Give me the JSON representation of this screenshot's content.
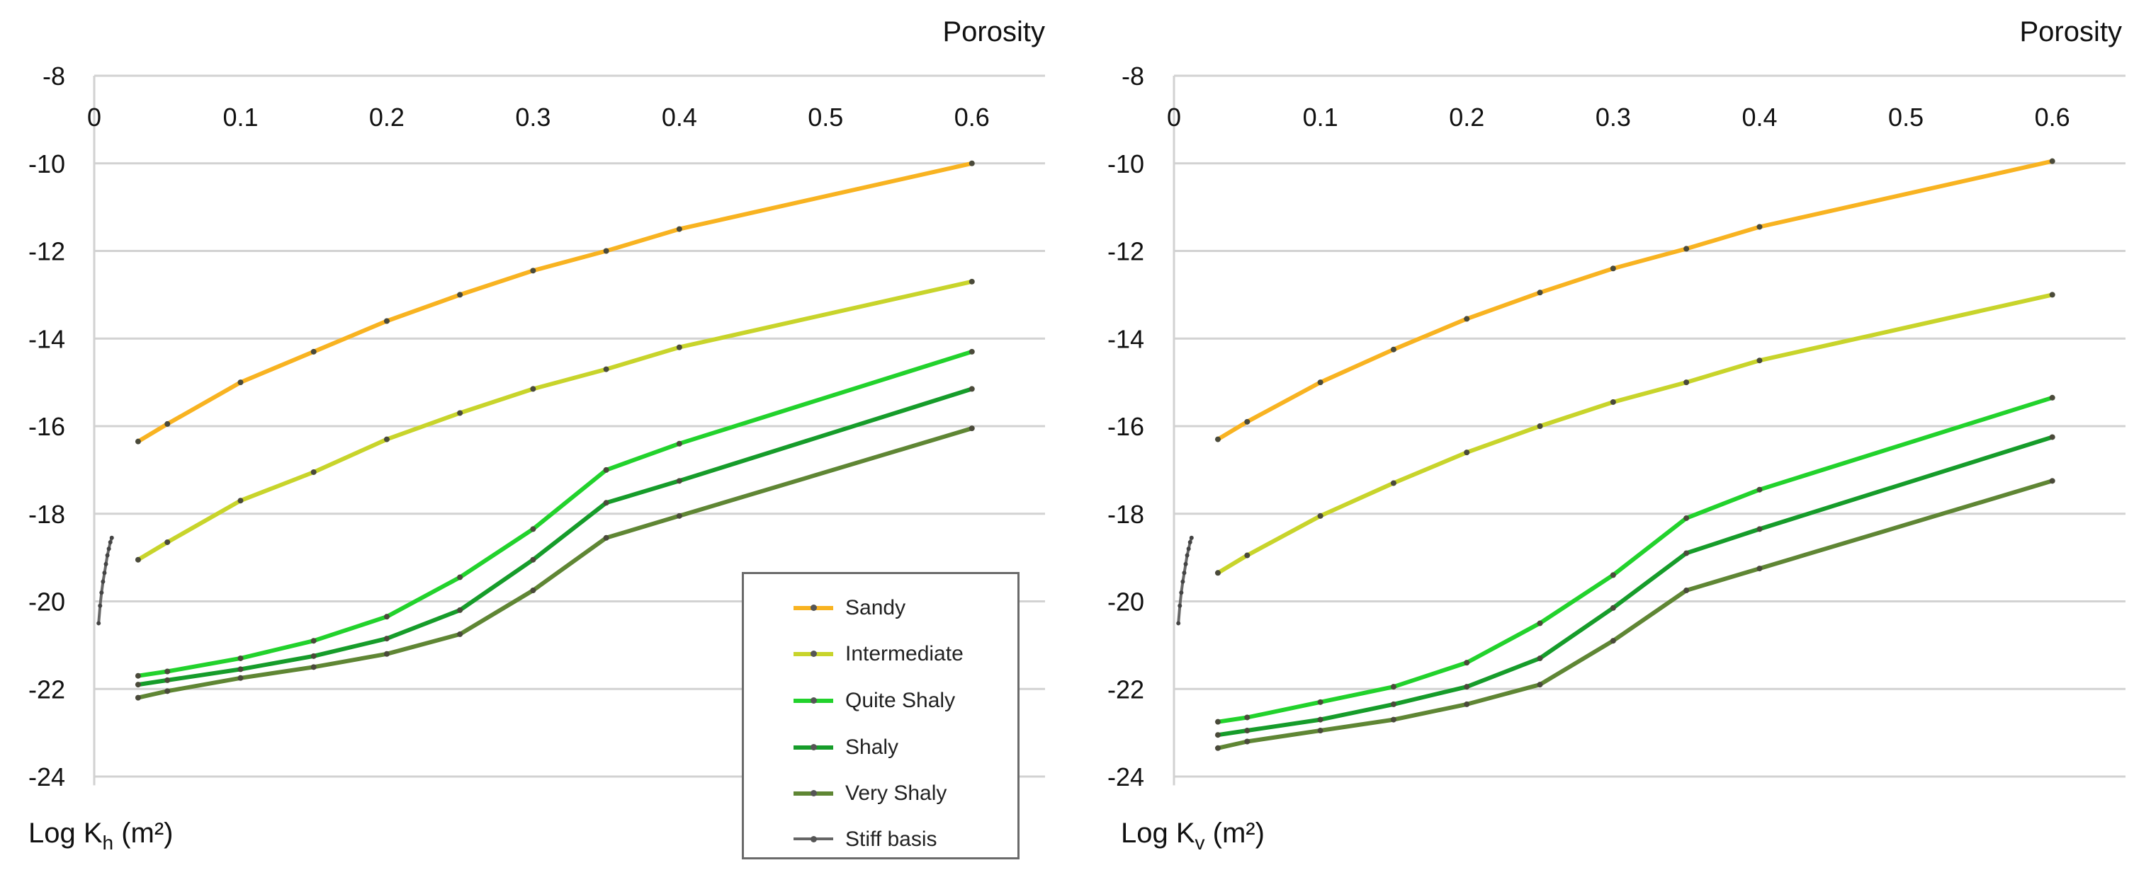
{
  "colors": {
    "sandy": "#f8b321",
    "intermediate": "#c8d42b",
    "quite_shaly": "#22d22c",
    "shaly": "#169c2a",
    "very_shaly": "#5f8634",
    "stiff_basis": "#666666",
    "grid": "#d2d2d2",
    "text": "#111111"
  },
  "chart_data": [
    {
      "type": "line",
      "x_axis_title": "Porosity",
      "y_axis_title": "Log K",
      "y_axis_subscript": "h",
      "y_axis_unit": " (m²)",
      "xlim": [
        0,
        0.65
      ],
      "ylim": [
        -24.2,
        -8
      ],
      "xticks": [
        0,
        0.1,
        0.2,
        0.3,
        0.4,
        0.5,
        0.6
      ],
      "xtick_labels": [
        "0",
        "0.1",
        "0.2",
        "0.3",
        "0.4",
        "0.5",
        "0.6"
      ],
      "yticks": [
        -8,
        -10,
        -12,
        -14,
        -16,
        -18,
        -20,
        -22,
        -24
      ],
      "ytick_labels": [
        "-8",
        "-10",
        "-12",
        "-14",
        "-16",
        "-18",
        "-20",
        "-22",
        "-24"
      ],
      "series": [
        {
          "name": "Sandy",
          "color_key": "sandy",
          "x": [
            0.03,
            0.05,
            0.1,
            0.15,
            0.2,
            0.25,
            0.3,
            0.35,
            0.4,
            0.6
          ],
          "y": [
            -16.35,
            -15.95,
            -15.0,
            -14.3,
            -13.6,
            -13.0,
            -12.45,
            -12.0,
            -11.5,
            -10.0
          ]
        },
        {
          "name": "Intermediate",
          "color_key": "intermediate",
          "x": [
            0.03,
            0.05,
            0.1,
            0.15,
            0.2,
            0.25,
            0.3,
            0.35,
            0.4,
            0.6
          ],
          "y": [
            -19.05,
            -18.65,
            -17.7,
            -17.05,
            -16.3,
            -15.7,
            -15.15,
            -14.7,
            -14.2,
            -12.7
          ]
        },
        {
          "name": "Quite Shaly",
          "color_key": "quite_shaly",
          "x": [
            0.03,
            0.05,
            0.1,
            0.15,
            0.2,
            0.25,
            0.3,
            0.35,
            0.4,
            0.6
          ],
          "y": [
            -21.7,
            -21.6,
            -21.3,
            -20.9,
            -20.35,
            -19.45,
            -18.35,
            -17.0,
            -16.4,
            -14.3
          ]
        },
        {
          "name": "Shaly",
          "color_key": "shaly",
          "x": [
            0.03,
            0.05,
            0.1,
            0.15,
            0.2,
            0.25,
            0.3,
            0.35,
            0.4,
            0.6
          ],
          "y": [
            -21.9,
            -21.8,
            -21.55,
            -21.25,
            -20.85,
            -20.2,
            -19.05,
            -17.75,
            -17.25,
            -15.15
          ]
        },
        {
          "name": "Very Shaly",
          "color_key": "very_shaly",
          "x": [
            0.03,
            0.05,
            0.1,
            0.15,
            0.2,
            0.25,
            0.3,
            0.35,
            0.4,
            0.6
          ],
          "y": [
            -22.2,
            -22.05,
            -21.75,
            -21.5,
            -21.2,
            -20.75,
            -19.75,
            -18.55,
            -18.05,
            -16.05
          ]
        },
        {
          "name": "Stiff basis",
          "color_key": "stiff_basis",
          "x": [
            0.003,
            0.004,
            0.005,
            0.006,
            0.007,
            0.008,
            0.009,
            0.01,
            0.011,
            0.012
          ],
          "y": [
            -20.5,
            -20.1,
            -19.8,
            -19.55,
            -19.35,
            -19.15,
            -18.95,
            -18.8,
            -18.65,
            -18.55
          ]
        }
      ]
    },
    {
      "type": "line",
      "x_axis_title": "Porosity",
      "y_axis_title": "Log K",
      "y_axis_subscript": "v",
      "y_axis_unit": " (m²)",
      "xlim": [
        0,
        0.65
      ],
      "ylim": [
        -24.2,
        -8
      ],
      "xticks": [
        0,
        0.1,
        0.2,
        0.3,
        0.4,
        0.5,
        0.6
      ],
      "xtick_labels": [
        "0",
        "0.1",
        "0.2",
        "0.3",
        "0.4",
        "0.5",
        "0.6"
      ],
      "yticks": [
        -8,
        -10,
        -12,
        -14,
        -16,
        -18,
        -20,
        -22,
        -24
      ],
      "ytick_labels": [
        "-8",
        "-10",
        "-12",
        "-14",
        "-16",
        "-18",
        "-20",
        "-22",
        "-24"
      ],
      "series": [
        {
          "name": "Sandy",
          "color_key": "sandy",
          "x": [
            0.03,
            0.05,
            0.1,
            0.15,
            0.2,
            0.25,
            0.3,
            0.35,
            0.4,
            0.6
          ],
          "y": [
            -16.3,
            -15.9,
            -15.0,
            -14.25,
            -13.55,
            -12.95,
            -12.4,
            -11.95,
            -11.45,
            -9.95
          ]
        },
        {
          "name": "Intermediate",
          "color_key": "intermediate",
          "x": [
            0.03,
            0.05,
            0.1,
            0.15,
            0.2,
            0.25,
            0.3,
            0.35,
            0.4,
            0.6
          ],
          "y": [
            -19.35,
            -18.95,
            -18.05,
            -17.3,
            -16.6,
            -16.0,
            -15.45,
            -15.0,
            -14.5,
            -13.0
          ]
        },
        {
          "name": "Quite Shaly",
          "color_key": "quite_shaly",
          "x": [
            0.03,
            0.05,
            0.1,
            0.15,
            0.2,
            0.25,
            0.3,
            0.35,
            0.4,
            0.6
          ],
          "y": [
            -22.75,
            -22.65,
            -22.3,
            -21.95,
            -21.4,
            -20.5,
            -19.4,
            -18.1,
            -17.45,
            -15.35
          ]
        },
        {
          "name": "Shaly",
          "color_key": "shaly",
          "x": [
            0.03,
            0.05,
            0.1,
            0.15,
            0.2,
            0.25,
            0.3,
            0.35,
            0.4,
            0.6
          ],
          "y": [
            -23.05,
            -22.95,
            -22.7,
            -22.35,
            -21.95,
            -21.3,
            -20.15,
            -18.9,
            -18.35,
            -16.25
          ]
        },
        {
          "name": "Very Shaly",
          "color_key": "very_shaly",
          "x": [
            0.03,
            0.05,
            0.1,
            0.15,
            0.2,
            0.25,
            0.3,
            0.35,
            0.4,
            0.6
          ],
          "y": [
            -23.35,
            -23.2,
            -22.95,
            -22.7,
            -22.35,
            -21.9,
            -20.9,
            -19.75,
            -19.25,
            -17.25
          ]
        },
        {
          "name": "Stiff basis",
          "color_key": "stiff_basis",
          "x": [
            0.003,
            0.004,
            0.005,
            0.006,
            0.007,
            0.008,
            0.009,
            0.01,
            0.011,
            0.012
          ],
          "y": [
            -20.5,
            -20.1,
            -19.8,
            -19.55,
            -19.35,
            -19.15,
            -18.95,
            -18.8,
            -18.65,
            -18.55
          ]
        }
      ]
    }
  ],
  "legend": {
    "placement": "bottom-center of left panel",
    "items": [
      {
        "label": "Sandy",
        "color_key": "sandy"
      },
      {
        "label": "Intermediate",
        "color_key": "intermediate"
      },
      {
        "label": "Quite Shaly",
        "color_key": "quite_shaly"
      },
      {
        "label": "Shaly",
        "color_key": "shaly"
      },
      {
        "label": "Very Shaly",
        "color_key": "very_shaly"
      },
      {
        "label": "Stiff basis",
        "color_key": "stiff_basis"
      }
    ]
  }
}
